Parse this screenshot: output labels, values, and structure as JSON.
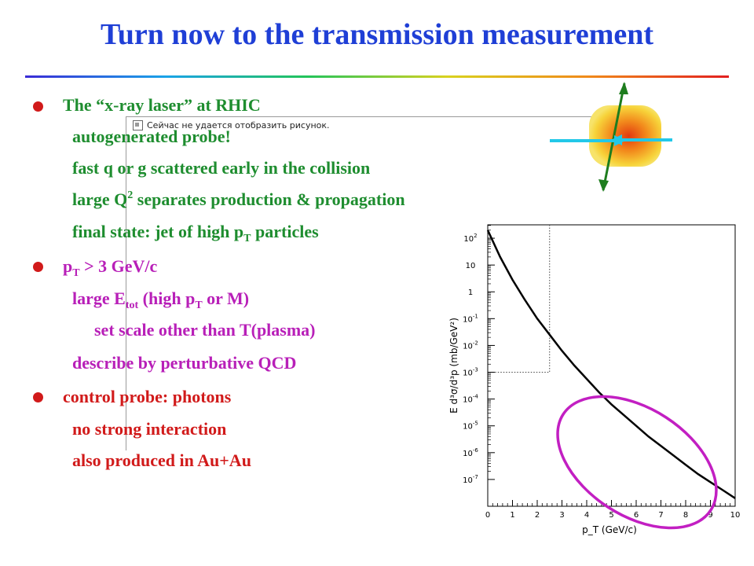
{
  "slide": {
    "title": "Turn now to the transmission measurement"
  },
  "clip_caption": "Сейчас не удается отобразить рисунок.",
  "bullets": {
    "b1": {
      "head": "The “x-ray laser” at RHIC",
      "l1": "autogenerated probe!",
      "l2": "fast q or g scattered early in the collision",
      "l3_a": "large Q",
      "l3_sup": "2",
      "l3_b": " separates production & propagation",
      "l4_a": "final state: jet of high p",
      "l4_sub": "T",
      "l4_b": " particles"
    },
    "b2": {
      "head_a": "p",
      "head_sub": "T",
      "head_b": " > 3 GeV/c",
      "l1_a": "large E",
      "l1_sub": "tot",
      "l1_b": " (high p",
      "l1_sub2": "T",
      "l1_c": " or M)",
      "l2": "set scale other than T(plasma)",
      "l3": "describe by perturbative QCD"
    },
    "b3": {
      "head": "control probe: photons",
      "l1": "no strong interaction",
      "l2": "also produced in Au+Au"
    }
  },
  "chart_data": {
    "type": "line",
    "xlabel": "p_T (GeV/c)",
    "ylabel": "E d³σ/d³p  (mb/GeV²)",
    "xlim": [
      0,
      10
    ],
    "ylim_log10": [
      -8,
      2.5
    ],
    "y_scale": "log",
    "x_ticks": [
      "0",
      "1",
      "2",
      "3",
      "4",
      "5",
      "6",
      "7",
      "8",
      "9",
      "10"
    ],
    "y_ticks": [
      {
        "base": "10",
        "exp": "2",
        "v": 2
      },
      {
        "base": "10",
        "exp": "",
        "v": 1
      },
      {
        "base": "1",
        "exp": "",
        "v": 0
      },
      {
        "base": "10",
        "exp": "-1",
        "v": -1
      },
      {
        "base": "10",
        "exp": "-2",
        "v": -2
      },
      {
        "base": "10",
        "exp": "-3",
        "v": -3
      },
      {
        "base": "10",
        "exp": "-4",
        "v": -4
      },
      {
        "base": "10",
        "exp": "-5",
        "v": -5
      },
      {
        "base": "10",
        "exp": "-6",
        "v": -6
      },
      {
        "base": "10",
        "exp": "-7",
        "v": -7
      }
    ],
    "curve_log10": [
      {
        "x": 0.0,
        "y": 2.3
      },
      {
        "x": 0.5,
        "y": 1.3
      },
      {
        "x": 1.0,
        "y": 0.45
      },
      {
        "x": 1.5,
        "y": -0.3
      },
      {
        "x": 2.0,
        "y": -1.0
      },
      {
        "x": 2.5,
        "y": -1.6
      },
      {
        "x": 3.0,
        "y": -2.2
      },
      {
        "x": 3.5,
        "y": -2.75
      },
      {
        "x": 4.0,
        "y": -3.25
      },
      {
        "x": 4.5,
        "y": -3.75
      },
      {
        "x": 5.0,
        "y": -4.2
      },
      {
        "x": 5.5,
        "y": -4.6
      },
      {
        "x": 6.0,
        "y": -5.0
      },
      {
        "x": 6.5,
        "y": -5.4
      },
      {
        "x": 7.0,
        "y": -5.75
      },
      {
        "x": 7.5,
        "y": -6.1
      },
      {
        "x": 8.0,
        "y": -6.45
      },
      {
        "x": 8.5,
        "y": -6.8
      },
      {
        "x": 9.0,
        "y": -7.1
      },
      {
        "x": 9.5,
        "y": -7.4
      },
      {
        "x": 10.0,
        "y": -7.7
      }
    ],
    "dotted_box": {
      "x_max": 2.5,
      "y_min_log10": -3
    },
    "ellipse_color": "#c21fc2",
    "curve_color": "#000000"
  },
  "colors": {
    "title": "#1f3fd6",
    "green_text": "#1e8d2f",
    "magenta_text": "#b81fb8",
    "red_text": "#d11a1a",
    "arrow_cyan": "#22c8e8",
    "arrow_green": "#1e7d1e"
  }
}
